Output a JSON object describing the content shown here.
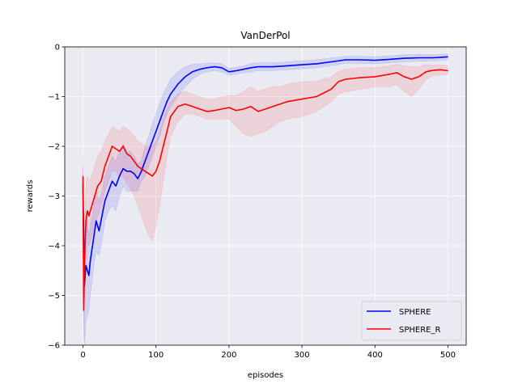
{
  "chart_data": {
    "type": "line",
    "title": "VanDerPol",
    "xlabel": "episodes",
    "ylabel": "rewards",
    "xlim": [
      -25,
      525
    ],
    "ylim": [
      -6,
      0
    ],
    "x_ticks": [
      0,
      100,
      200,
      300,
      400,
      500
    ],
    "y_ticks": [
      0,
      -1,
      -2,
      -3,
      -4,
      -5,
      -6
    ],
    "grid": true,
    "background": "#eaeaf2",
    "legend_position": "lower-right",
    "series": [
      {
        "name": "SPHERE",
        "color": "#0000ff",
        "band_color": "#0000ff",
        "x": [
          0,
          2,
          4,
          6,
          8,
          10,
          14,
          18,
          22,
          26,
          30,
          35,
          40,
          45,
          50,
          55,
          60,
          65,
          70,
          75,
          80,
          85,
          90,
          95,
          100,
          105,
          110,
          115,
          120,
          130,
          140,
          150,
          160,
          170,
          180,
          190,
          200,
          210,
          220,
          230,
          240,
          260,
          280,
          300,
          320,
          340,
          360,
          380,
          400,
          420,
          440,
          460,
          480,
          500
        ],
        "y": [
          -2.8,
          -4.8,
          -4.4,
          -4.5,
          -4.6,
          -4.3,
          -3.9,
          -3.5,
          -3.7,
          -3.4,
          -3.1,
          -2.9,
          -2.7,
          -2.8,
          -2.6,
          -2.45,
          -2.5,
          -2.5,
          -2.55,
          -2.65,
          -2.5,
          -2.3,
          -2.1,
          -1.9,
          -1.7,
          -1.5,
          -1.3,
          -1.1,
          -0.95,
          -0.75,
          -0.6,
          -0.5,
          -0.45,
          -0.42,
          -0.4,
          -0.42,
          -0.5,
          -0.48,
          -0.45,
          -0.42,
          -0.4,
          -0.4,
          -0.38,
          -0.36,
          -0.34,
          -0.3,
          -0.26,
          -0.26,
          -0.27,
          -0.25,
          -0.23,
          -0.22,
          -0.22,
          -0.2
        ],
        "lower": [
          -3.2,
          -6.0,
          -5.5,
          -5.4,
          -5.3,
          -5.0,
          -4.5,
          -4.1,
          -4.2,
          -3.9,
          -3.5,
          -3.3,
          -3.2,
          -3.3,
          -3.0,
          -2.8,
          -2.9,
          -2.9,
          -2.9,
          -2.9,
          -2.7,
          -2.6,
          -2.4,
          -2.2,
          -2.0,
          -1.8,
          -1.55,
          -1.35,
          -1.2,
          -1.0,
          -0.8,
          -0.65,
          -0.55,
          -0.5,
          -0.48,
          -0.5,
          -0.57,
          -0.55,
          -0.52,
          -0.5,
          -0.48,
          -0.48,
          -0.46,
          -0.44,
          -0.42,
          -0.38,
          -0.33,
          -0.33,
          -0.34,
          -0.32,
          -0.3,
          -0.29,
          -0.28,
          -0.26
        ],
        "upper": [
          -2.4,
          -3.8,
          -3.3,
          -3.6,
          -3.8,
          -3.6,
          -3.3,
          -2.9,
          -3.1,
          -2.9,
          -2.6,
          -2.4,
          -2.2,
          -2.3,
          -2.1,
          -1.95,
          -2.1,
          -2.1,
          -2.2,
          -2.35,
          -2.3,
          -2.0,
          -1.8,
          -1.55,
          -1.35,
          -1.15,
          -0.95,
          -0.8,
          -0.65,
          -0.5,
          -0.4,
          -0.35,
          -0.34,
          -0.33,
          -0.32,
          -0.34,
          -0.43,
          -0.41,
          -0.38,
          -0.34,
          -0.32,
          -0.32,
          -0.3,
          -0.28,
          -0.26,
          -0.22,
          -0.19,
          -0.19,
          -0.2,
          -0.18,
          -0.16,
          -0.15,
          -0.16,
          -0.14
        ]
      },
      {
        "name": "SPHERE_R",
        "color": "#ff0000",
        "band_color": "#ff0000",
        "x": [
          0,
          1,
          2,
          4,
          6,
          8,
          12,
          16,
          20,
          25,
          30,
          35,
          40,
          45,
          50,
          55,
          60,
          65,
          70,
          75,
          80,
          85,
          90,
          95,
          100,
          105,
          110,
          115,
          120,
          130,
          140,
          150,
          160,
          170,
          180,
          190,
          200,
          210,
          220,
          230,
          240,
          250,
          260,
          270,
          280,
          300,
          320,
          340,
          350,
          360,
          380,
          400,
          420,
          430,
          440,
          450,
          460,
          470,
          480,
          490,
          500
        ],
        "y": [
          -2.6,
          -5.3,
          -4.4,
          -3.5,
          -3.3,
          -3.4,
          -3.2,
          -3.0,
          -2.8,
          -2.7,
          -2.4,
          -2.2,
          -2.0,
          -2.05,
          -2.1,
          -2.0,
          -2.15,
          -2.2,
          -2.3,
          -2.4,
          -2.45,
          -2.5,
          -2.55,
          -2.6,
          -2.5,
          -2.3,
          -2.0,
          -1.7,
          -1.4,
          -1.2,
          -1.15,
          -1.2,
          -1.25,
          -1.3,
          -1.28,
          -1.25,
          -1.22,
          -1.28,
          -1.25,
          -1.2,
          -1.3,
          -1.25,
          -1.2,
          -1.15,
          -1.1,
          -1.05,
          -1.0,
          -0.85,
          -0.7,
          -0.65,
          -0.62,
          -0.6,
          -0.55,
          -0.52,
          -0.6,
          -0.65,
          -0.6,
          -0.5,
          -0.47,
          -0.46,
          -0.48
        ],
        "lower": [
          -3.0,
          -5.9,
          -5.2,
          -4.3,
          -4.0,
          -4.0,
          -3.8,
          -3.6,
          -3.4,
          -3.2,
          -2.9,
          -2.7,
          -2.5,
          -2.5,
          -2.6,
          -2.6,
          -2.75,
          -2.85,
          -3.0,
          -3.2,
          -3.4,
          -3.6,
          -3.8,
          -3.9,
          -3.6,
          -3.2,
          -2.7,
          -2.2,
          -1.8,
          -1.5,
          -1.35,
          -1.35,
          -1.4,
          -1.45,
          -1.45,
          -1.45,
          -1.45,
          -1.6,
          -1.75,
          -1.8,
          -1.75,
          -1.7,
          -1.6,
          -1.5,
          -1.45,
          -1.4,
          -1.3,
          -1.1,
          -0.95,
          -0.9,
          -0.85,
          -0.8,
          -0.8,
          -0.75,
          -0.9,
          -1.0,
          -0.85,
          -0.65,
          -0.58,
          -0.56,
          -0.56
        ],
        "upper": [
          -2.2,
          -4.6,
          -3.6,
          -2.8,
          -2.6,
          -2.7,
          -2.6,
          -2.4,
          -2.2,
          -2.1,
          -1.9,
          -1.75,
          -1.6,
          -1.65,
          -1.7,
          -1.6,
          -1.65,
          -1.7,
          -1.8,
          -1.9,
          -1.95,
          -2.0,
          -2.0,
          -2.0,
          -1.9,
          -1.7,
          -1.45,
          -1.25,
          -1.1,
          -0.95,
          -0.9,
          -0.95,
          -1.0,
          -1.05,
          -1.05,
          -1.0,
          -0.98,
          -0.98,
          -0.9,
          -0.8,
          -0.9,
          -0.85,
          -0.8,
          -0.8,
          -0.75,
          -0.7,
          -0.7,
          -0.6,
          -0.5,
          -0.45,
          -0.42,
          -0.42,
          -0.38,
          -0.35,
          -0.38,
          -0.4,
          -0.4,
          -0.36,
          -0.37,
          -0.36,
          -0.38
        ]
      }
    ]
  }
}
